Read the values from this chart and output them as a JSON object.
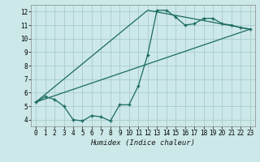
{
  "xlabel": "Humidex (Indice chaleur)",
  "background_color": "#cce8e8",
  "grid_color": "#aacccc",
  "line_color": "#1a6b5e",
  "xlim": [
    -0.5,
    23.5
  ],
  "ylim": [
    3.5,
    12.5
  ],
  "xticks": [
    0,
    1,
    2,
    3,
    4,
    5,
    6,
    7,
    8,
    9,
    10,
    11,
    12,
    13,
    14,
    15,
    16,
    17,
    18,
    19,
    20,
    21,
    22,
    23
  ],
  "yticks": [
    4,
    5,
    6,
    7,
    8,
    9,
    10,
    11,
    12
  ],
  "line1_x": [
    0,
    1,
    2,
    3,
    4,
    5,
    6,
    7,
    8,
    9,
    10,
    11,
    12,
    13,
    14,
    15,
    16,
    17,
    18,
    19,
    20,
    21,
    22,
    23
  ],
  "line1_y": [
    5.3,
    5.7,
    5.5,
    5.0,
    4.0,
    3.9,
    4.3,
    4.2,
    3.9,
    5.1,
    5.1,
    6.5,
    8.8,
    12.1,
    12.1,
    11.6,
    11.0,
    11.1,
    11.5,
    11.5,
    11.1,
    11.0,
    10.8,
    10.7
  ],
  "line2_x": [
    0,
    12,
    23
  ],
  "line2_y": [
    5.3,
    12.1,
    10.7
  ],
  "line3_x": [
    0,
    23
  ],
  "line3_y": [
    5.3,
    10.7
  ]
}
